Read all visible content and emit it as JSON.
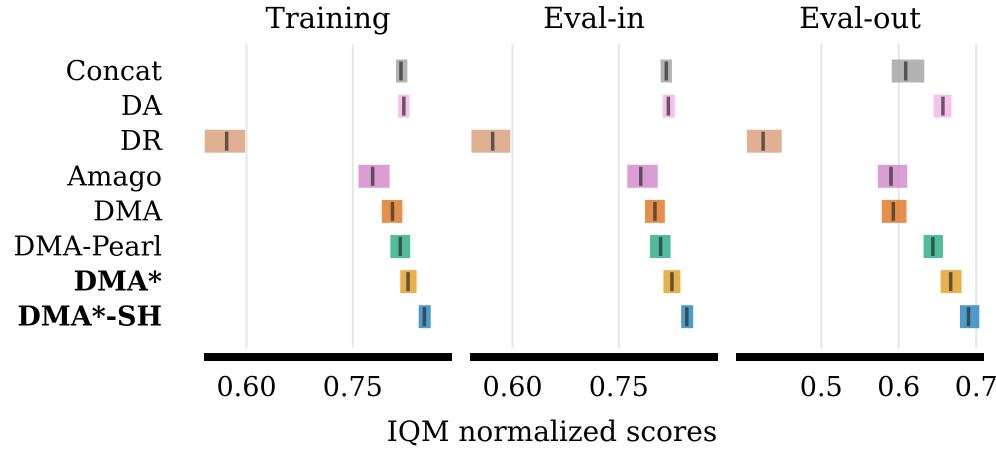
{
  "chart_data": {
    "type": "interval",
    "xlabel": "IQM normalized scores",
    "methods": [
      "Concat",
      "DA",
      "DR",
      "Amago",
      "DMA",
      "DMA-Pearl",
      "DMA*",
      "DMA*-SH"
    ],
    "bold_methods": [
      "DMA*",
      "DMA*-SH"
    ],
    "colors": [
      "#a6a6a6",
      "#f7b6e8",
      "#d9a37f",
      "#d48ccd",
      "#e37b2a",
      "#30b08a",
      "#e4a32b",
      "#2f8bc0"
    ],
    "panels": [
      {
        "title": "Training",
        "xlim": [
          0.54,
          0.89
        ],
        "ticks": [
          0.6,
          0.75
        ],
        "tick_labels": [
          "0.60",
          "0.75"
        ],
        "grid": [
          0.6,
          0.75
        ],
        "intervals": [
          {
            "method": "Concat",
            "low": 0.811,
            "high": 0.827,
            "median": 0.818
          },
          {
            "method": "DA",
            "low": 0.814,
            "high": 0.83,
            "median": 0.822
          },
          {
            "method": "DR",
            "low": 0.541,
            "high": 0.598,
            "median": 0.572
          },
          {
            "method": "Amago",
            "low": 0.758,
            "high": 0.802,
            "median": 0.778
          },
          {
            "method": "DMA",
            "low": 0.791,
            "high": 0.82,
            "median": 0.806
          },
          {
            "method": "DMA-Pearl",
            "low": 0.803,
            "high": 0.831,
            "median": 0.817
          },
          {
            "method": "DMA*",
            "low": 0.817,
            "high": 0.84,
            "median": 0.828
          },
          {
            "method": "DMA*-SH",
            "low": 0.843,
            "high": 0.86,
            "median": 0.851
          }
        ]
      },
      {
        "title": "Eval-in",
        "xlim": [
          0.54,
          0.89
        ],
        "ticks": [
          0.6,
          0.75
        ],
        "tick_labels": [
          "0.60",
          "0.75"
        ],
        "grid": [
          0.6,
          0.75
        ],
        "intervals": [
          {
            "method": "Concat",
            "low": 0.809,
            "high": 0.825,
            "median": 0.817
          },
          {
            "method": "DA",
            "low": 0.812,
            "high": 0.829,
            "median": 0.82
          },
          {
            "method": "DR",
            "low": 0.542,
            "high": 0.597,
            "median": 0.572
          },
          {
            "method": "Amago",
            "low": 0.762,
            "high": 0.805,
            "median": 0.781
          },
          {
            "method": "DMA",
            "low": 0.787,
            "high": 0.815,
            "median": 0.801
          },
          {
            "method": "DMA-Pearl",
            "low": 0.794,
            "high": 0.823,
            "median": 0.809
          },
          {
            "method": "DMA*",
            "low": 0.813,
            "high": 0.837,
            "median": 0.825
          },
          {
            "method": "DMA*-SH",
            "low": 0.838,
            "high": 0.855,
            "median": 0.846
          }
        ]
      },
      {
        "title": "Eval-out",
        "xlim": [
          0.39,
          0.71
        ],
        "ticks": [
          0.5,
          0.6,
          0.7
        ],
        "tick_labels": [
          "0.5",
          "0.6",
          "0.7"
        ],
        "grid": [
          0.5,
          0.6,
          0.7
        ],
        "intervals": [
          {
            "method": "Concat",
            "low": 0.591,
            "high": 0.633,
            "median": 0.609
          },
          {
            "method": "DA",
            "low": 0.645,
            "high": 0.668,
            "median": 0.657
          },
          {
            "method": "DR",
            "low": 0.404,
            "high": 0.449,
            "median": 0.425
          },
          {
            "method": "Amago",
            "low": 0.573,
            "high": 0.611,
            "median": 0.59
          },
          {
            "method": "DMA",
            "low": 0.578,
            "high": 0.61,
            "median": 0.593
          },
          {
            "method": "DMA-Pearl",
            "low": 0.632,
            "high": 0.657,
            "median": 0.644
          },
          {
            "method": "DMA*",
            "low": 0.654,
            "high": 0.681,
            "median": 0.667
          },
          {
            "method": "DMA*-SH",
            "low": 0.679,
            "high": 0.704,
            "median": 0.69
          }
        ]
      }
    ]
  }
}
